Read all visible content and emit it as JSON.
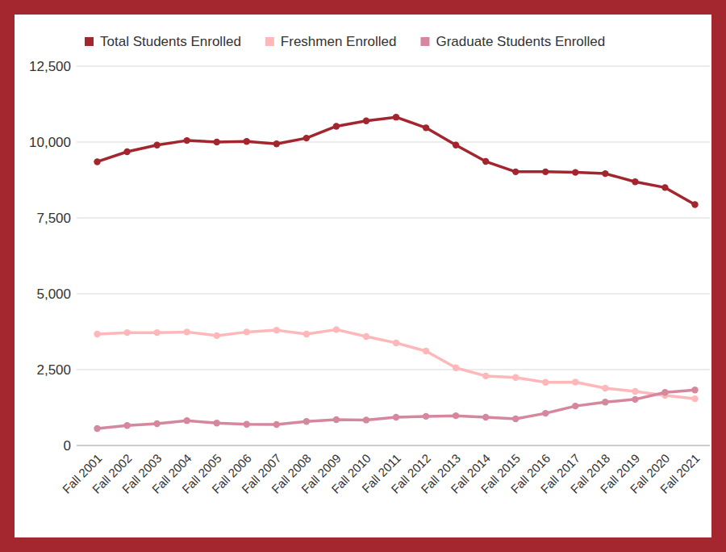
{
  "chart_data": {
    "type": "line",
    "categories": [
      "Fall 2001",
      "Fall 2002",
      "Fall 2003",
      "Fall 2004",
      "Fall 2005",
      "Fall 2006",
      "Fall 2007",
      "Fall 2008",
      "Fall 2009",
      "Fall 2010",
      "Fall 2011",
      "Fall 2012",
      "Fall 2013",
      "Fall 2014",
      "Fall 2015",
      "Fall 2016",
      "Fall 2017",
      "Fall 2018",
      "Fall 2019",
      "Fall 2020",
      "Fall 2021"
    ],
    "series": [
      {
        "name": "Total Students Enrolled",
        "color": "#a3262f",
        "marker": "circle",
        "values": [
          9350,
          9680,
          9900,
          10050,
          10000,
          10020,
          9940,
          10130,
          10520,
          10700,
          10820,
          10470,
          9900,
          9360,
          9020,
          9020,
          9000,
          8960,
          8690,
          8500,
          7940
        ]
      },
      {
        "name": "Freshmen Enrolled",
        "color": "#ffb8b9",
        "marker": "circle",
        "values": [
          3670,
          3720,
          3720,
          3740,
          3620,
          3740,
          3800,
          3670,
          3820,
          3590,
          3380,
          3110,
          2560,
          2290,
          2240,
          2080,
          2090,
          1890,
          1780,
          1650,
          1540
        ]
      },
      {
        "name": "Graduate Students Enrolled",
        "color": "#d4879d",
        "marker": "circle",
        "values": [
          560,
          660,
          720,
          820,
          740,
          700,
          690,
          790,
          850,
          840,
          930,
          960,
          980,
          930,
          880,
          1060,
          1300,
          1430,
          1520,
          1750,
          1830
        ]
      }
    ],
    "ylim": [
      0,
      12500
    ],
    "yticks": [
      0,
      {
        "value": 2500,
        "label": "2,500"
      },
      {
        "value": 5000,
        "label": "5,000"
      },
      {
        "value": 7500,
        "label": "7,500"
      },
      {
        "value": 10000,
        "label": "10,000"
      },
      {
        "value": 12500,
        "label": "12,500"
      }
    ],
    "grid": true,
    "legend": "top"
  }
}
